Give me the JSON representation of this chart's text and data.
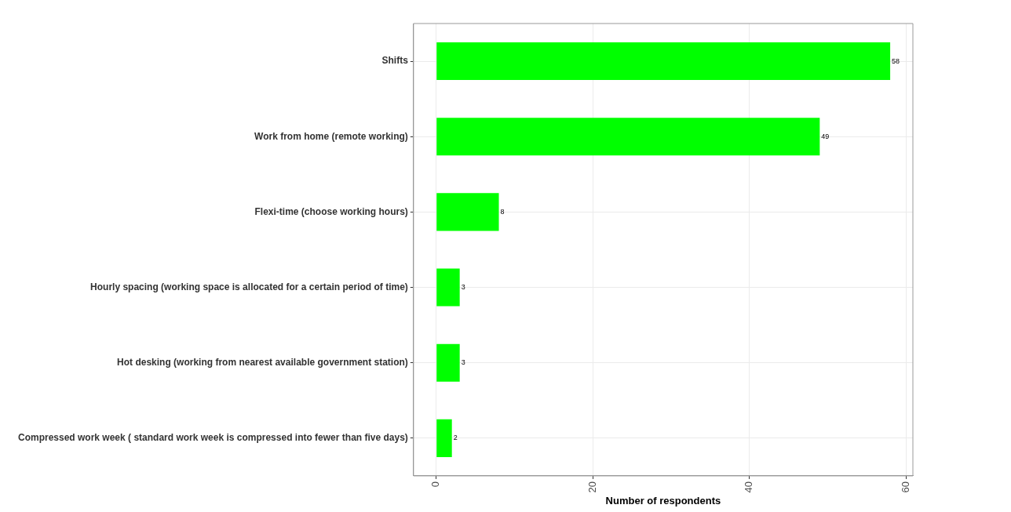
{
  "chart_data": {
    "type": "bar",
    "orientation": "horizontal",
    "xlabel": "Number of respondents",
    "categories": [
      "Shifts",
      "Work from home (remote working)",
      "Flexi-time (choose working hours)",
      "Hourly spacing (working space is allocated for a certain period of time)",
      "Hot desking (working from nearest available government station)",
      "Compressed work week ( standard work week is compressed into fewer than five days)"
    ],
    "values": [
      58,
      49,
      8,
      3,
      3,
      2
    ],
    "color": "#00ff00",
    "xlim": [
      -2.9,
      60.9
    ],
    "xticks": [
      0,
      20,
      40,
      60
    ],
    "grid": true,
    "data_labels": true
  }
}
